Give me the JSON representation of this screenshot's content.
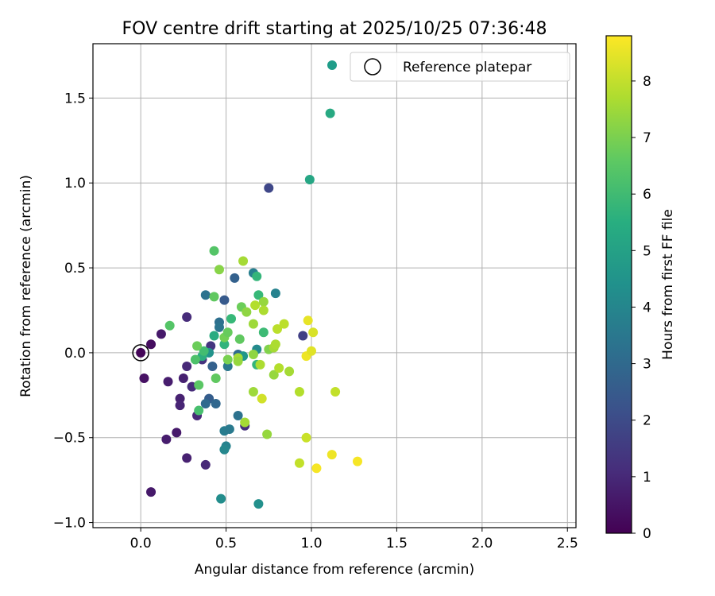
{
  "chart_data": {
    "type": "scatter",
    "title": "FOV centre drift starting at 2025/10/25 07:36:48",
    "xlabel": "Angular distance from reference (arcmin)",
    "ylabel": "Rotation from reference (arcmin)",
    "xlim": [
      -0.28,
      2.55
    ],
    "ylim": [
      -1.03,
      1.82
    ],
    "xticks": [
      0.0,
      0.5,
      1.0,
      1.5,
      2.0,
      2.5
    ],
    "xtick_labels": [
      "0.0",
      "0.5",
      "1.0",
      "1.5",
      "2.0",
      "2.5"
    ],
    "yticks": [
      -1.0,
      -0.5,
      0.0,
      0.5,
      1.0,
      1.5
    ],
    "ytick_labels": [
      "−1.0",
      "−0.5",
      "0.0",
      "0.5",
      "1.0",
      "1.5"
    ],
    "grid": true,
    "legend": {
      "placement": "top-right",
      "entries": [
        "",
        "Reference platepar"
      ]
    },
    "colorbar": {
      "label": "Hours from first FF file",
      "colormap": "viridis",
      "range": [
        0,
        8.8
      ],
      "ticks": [
        0,
        1,
        2,
        3,
        4,
        5,
        6,
        7,
        8
      ],
      "tick_labels": [
        "0",
        "1",
        "2",
        "3",
        "4",
        "5",
        "6",
        "7",
        "8"
      ]
    },
    "reference_point": {
      "x": 0.0,
      "y": 0.0
    },
    "points": [
      {
        "x": 0.0,
        "y": 0.0,
        "t": 0.1
      },
      {
        "x": 0.06,
        "y": 0.05,
        "t": 0.3
      },
      {
        "x": 0.12,
        "y": 0.11,
        "t": 0.6
      },
      {
        "x": 0.02,
        "y": -0.15,
        "t": 0.4
      },
      {
        "x": 0.16,
        "y": -0.17,
        "t": 0.7
      },
      {
        "x": 0.23,
        "y": -0.27,
        "t": 0.8
      },
      {
        "x": 0.23,
        "y": -0.31,
        "t": 0.9
      },
      {
        "x": 0.25,
        "y": -0.15,
        "t": 0.8
      },
      {
        "x": 0.27,
        "y": -0.08,
        "t": 1.0
      },
      {
        "x": 0.3,
        "y": -0.2,
        "t": 1.1
      },
      {
        "x": 0.21,
        "y": -0.47,
        "t": 0.6
      },
      {
        "x": 0.15,
        "y": -0.51,
        "t": 0.7
      },
      {
        "x": 0.27,
        "y": -0.62,
        "t": 0.8
      },
      {
        "x": 0.38,
        "y": -0.66,
        "t": 1.0
      },
      {
        "x": 0.06,
        "y": -0.82,
        "t": 0.6
      },
      {
        "x": 0.27,
        "y": 0.21,
        "t": 1.1
      },
      {
        "x": 0.33,
        "y": -0.37,
        "t": 1.0
      },
      {
        "x": 0.36,
        "y": -0.04,
        "t": 1.3
      },
      {
        "x": 0.41,
        "y": 0.04,
        "t": 1.4
      },
      {
        "x": 0.61,
        "y": -0.43,
        "t": 1.2
      },
      {
        "x": 0.75,
        "y": 0.97,
        "t": 1.9
      },
      {
        "x": 0.95,
        "y": 0.1,
        "t": 1.7
      },
      {
        "x": 0.4,
        "y": -0.27,
        "t": 2.6
      },
      {
        "x": 0.38,
        "y": -0.3,
        "t": 3.0
      },
      {
        "x": 0.44,
        "y": -0.3,
        "t": 2.9
      },
      {
        "x": 0.42,
        "y": -0.08,
        "t": 2.7
      },
      {
        "x": 0.49,
        "y": 0.31,
        "t": 2.5
      },
      {
        "x": 0.55,
        "y": 0.44,
        "t": 2.7
      },
      {
        "x": 0.38,
        "y": 0.34,
        "t": 3.3
      },
      {
        "x": 0.46,
        "y": 0.18,
        "t": 3.2
      },
      {
        "x": 0.46,
        "y": 0.15,
        "t": 3.4
      },
      {
        "x": 0.51,
        "y": -0.08,
        "t": 3.5
      },
      {
        "x": 0.57,
        "y": -0.01,
        "t": 3.0
      },
      {
        "x": 0.57,
        "y": -0.37,
        "t": 3.3
      },
      {
        "x": 0.49,
        "y": -0.46,
        "t": 3.7
      },
      {
        "x": 0.52,
        "y": -0.45,
        "t": 3.6
      },
      {
        "x": 0.5,
        "y": -0.55,
        "t": 3.9
      },
      {
        "x": 0.49,
        "y": -0.57,
        "t": 4.1
      },
      {
        "x": 0.47,
        "y": -0.86,
        "t": 4.3
      },
      {
        "x": 0.69,
        "y": -0.89,
        "t": 4.4
      },
      {
        "x": 0.66,
        "y": 0.47,
        "t": 3.8
      },
      {
        "x": 0.79,
        "y": 0.35,
        "t": 3.9
      },
      {
        "x": 0.68,
        "y": 0.02,
        "t": 4.2
      },
      {
        "x": 0.6,
        "y": -0.02,
        "t": 4.6
      },
      {
        "x": 0.4,
        "y": 0.0,
        "t": 4.5
      },
      {
        "x": 0.99,
        "y": 1.02,
        "t": 5.2
      },
      {
        "x": 1.11,
        "y": 1.41,
        "t": 5.3
      },
      {
        "x": 0.43,
        "y": 0.1,
        "t": 5.4
      },
      {
        "x": 0.36,
        "y": -0.02,
        "t": 5.5
      },
      {
        "x": 0.49,
        "y": 0.05,
        "t": 5.7
      },
      {
        "x": 0.53,
        "y": 0.2,
        "t": 5.9
      },
      {
        "x": 0.68,
        "y": 0.45,
        "t": 5.8
      },
      {
        "x": 0.69,
        "y": 0.34,
        "t": 5.9
      },
      {
        "x": 0.68,
        "y": -0.07,
        "t": 5.8
      },
      {
        "x": 0.72,
        "y": 0.12,
        "t": 6.0
      },
      {
        "x": 0.37,
        "y": 0.01,
        "t": 6.1
      },
      {
        "x": 0.32,
        "y": -0.04,
        "t": 6.3
      },
      {
        "x": 0.34,
        "y": -0.34,
        "t": 6.2
      },
      {
        "x": 0.34,
        "y": -0.19,
        "t": 6.5
      },
      {
        "x": 0.43,
        "y": 0.6,
        "t": 6.4
      },
      {
        "x": 0.43,
        "y": 0.33,
        "t": 6.6
      },
      {
        "x": 0.17,
        "y": 0.16,
        "t": 6.4
      },
      {
        "x": 0.33,
        "y": 0.04,
        "t": 6.8
      },
      {
        "x": 0.44,
        "y": -0.15,
        "t": 6.6
      },
      {
        "x": 0.49,
        "y": 0.09,
        "t": 6.9
      },
      {
        "x": 0.51,
        "y": -0.04,
        "t": 7.0
      },
      {
        "x": 0.51,
        "y": 0.12,
        "t": 6.7
      },
      {
        "x": 0.58,
        "y": 0.08,
        "t": 6.6
      },
      {
        "x": 0.59,
        "y": 0.27,
        "t": 6.8
      },
      {
        "x": 0.46,
        "y": 0.49,
        "t": 7.2
      },
      {
        "x": 0.6,
        "y": 0.54,
        "t": 7.6
      },
      {
        "x": 0.62,
        "y": 0.24,
        "t": 7.3
      },
      {
        "x": 0.67,
        "y": 0.28,
        "t": 7.8
      },
      {
        "x": 0.72,
        "y": 0.3,
        "t": 7.4
      },
      {
        "x": 0.72,
        "y": 0.25,
        "t": 7.7
      },
      {
        "x": 0.66,
        "y": 0.17,
        "t": 7.5
      },
      {
        "x": 0.57,
        "y": -0.03,
        "t": 7.6
      },
      {
        "x": 0.57,
        "y": -0.05,
        "t": 7.4
      },
      {
        "x": 0.66,
        "y": -0.23,
        "t": 7.5
      },
      {
        "x": 0.61,
        "y": -0.41,
        "t": 7.6
      },
      {
        "x": 0.7,
        "y": -0.07,
        "t": 7.7
      },
      {
        "x": 0.66,
        "y": -0.01,
        "t": 7.3
      },
      {
        "x": 0.75,
        "y": 0.02,
        "t": 7.1
      },
      {
        "x": 0.78,
        "y": -0.13,
        "t": 7.4
      },
      {
        "x": 0.78,
        "y": 0.03,
        "t": 7.6
      },
      {
        "x": 0.79,
        "y": 0.05,
        "t": 7.7
      },
      {
        "x": 0.8,
        "y": 0.14,
        "t": 7.9
      },
      {
        "x": 0.81,
        "y": -0.09,
        "t": 7.8
      },
      {
        "x": 0.84,
        "y": 0.17,
        "t": 7.9
      },
      {
        "x": 0.87,
        "y": -0.11,
        "t": 7.6
      },
      {
        "x": 0.74,
        "y": -0.48,
        "t": 7.4
      },
      {
        "x": 0.93,
        "y": -0.23,
        "t": 7.8
      },
      {
        "x": 0.93,
        "y": -0.65,
        "t": 8.0
      },
      {
        "x": 0.71,
        "y": -0.27,
        "t": 8.2
      },
      {
        "x": 0.98,
        "y": 0.19,
        "t": 8.5
      },
      {
        "x": 1.01,
        "y": 0.12,
        "t": 8.3
      },
      {
        "x": 0.97,
        "y": -0.02,
        "t": 8.6
      },
      {
        "x": 1.0,
        "y": 0.01,
        "t": 8.4
      },
      {
        "x": 0.97,
        "y": -0.5,
        "t": 8.1
      },
      {
        "x": 1.03,
        "y": -0.68,
        "t": 8.7
      },
      {
        "x": 1.12,
        "y": -0.6,
        "t": 8.6
      },
      {
        "x": 1.14,
        "y": -0.23,
        "t": 8.0
      },
      {
        "x": 1.27,
        "y": -0.64,
        "t": 8.7
      }
    ]
  }
}
